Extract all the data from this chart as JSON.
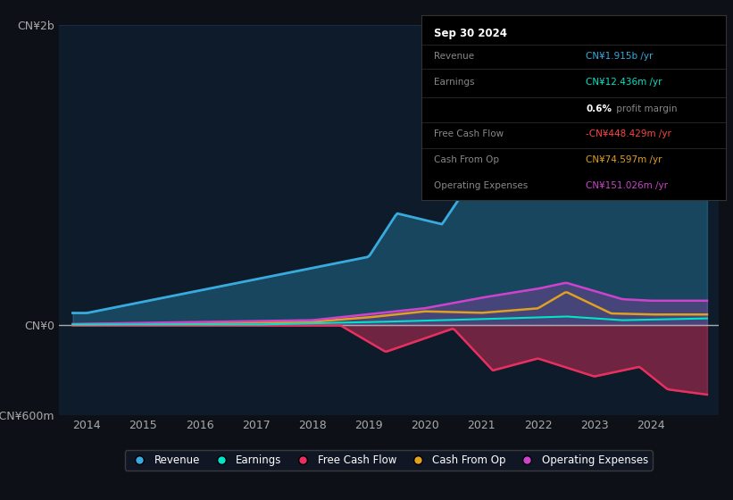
{
  "bg_color": "#0d1117",
  "plot_bg_color": "#0d1b2a",
  "title": "Sep 30 2024",
  "ylim": [
    -600,
    2000
  ],
  "xlim": [
    2013.5,
    2025.2
  ],
  "yticks": [
    -600,
    0,
    2000
  ],
  "ytick_labels": [
    "-CN¥600m",
    "CN¥0",
    "CN¥2b"
  ],
  "xticks": [
    2014,
    2015,
    2016,
    2017,
    2018,
    2019,
    2020,
    2021,
    2022,
    2023,
    2024
  ],
  "grid_color": "#1e3050",
  "zero_line_color": "#aaaaaa",
  "colors": {
    "revenue": "#38aadd",
    "earnings": "#00e5c8",
    "free_cash_flow": "#e83060",
    "cash_from_op": "#e0a020",
    "operating_expenses": "#cc44cc"
  },
  "legend": [
    {
      "label": "Revenue",
      "color": "#38aadd"
    },
    {
      "label": "Earnings",
      "color": "#00e5c8"
    },
    {
      "label": "Free Cash Flow",
      "color": "#e83060"
    },
    {
      "label": "Cash From Op",
      "color": "#e0a020"
    },
    {
      "label": "Operating Expenses",
      "color": "#cc44cc"
    }
  ]
}
